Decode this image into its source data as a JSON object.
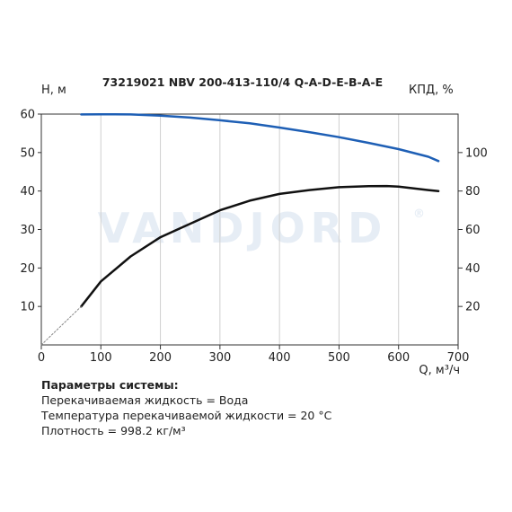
{
  "chart_data": {
    "type": "line",
    "title": "73219021 NBV 200-413-110/4 Q-A-D-E-B-A-E",
    "watermark": "VANDJORD",
    "watermark_mark": "®",
    "xlabel": "Q, м³/ч",
    "ylabel": "H, м",
    "y2label": "КПД, %",
    "xlim": [
      0,
      700
    ],
    "ylim": [
      0,
      60
    ],
    "y2lim": [
      0,
      120
    ],
    "xticks": [
      "0",
      "100",
      "200",
      "300",
      "400",
      "500",
      "600",
      "700"
    ],
    "yticks": [
      "10",
      "20",
      "30",
      "40",
      "50",
      "60"
    ],
    "y2ticks": [
      "20",
      "40",
      "60",
      "80",
      "100"
    ],
    "grid": "vertical",
    "series": [
      {
        "axis": "left",
        "color": "#1e5fb5",
        "x": [
          67,
          100,
          150,
          200,
          250,
          300,
          350,
          400,
          450,
          500,
          550,
          600,
          650,
          667
        ],
        "y": [
          59.9,
          59.95,
          59.9,
          59.6,
          59.1,
          58.4,
          57.6,
          56.5,
          55.3,
          54.0,
          52.5,
          50.9,
          48.9,
          47.8
        ]
      },
      {
        "axis": "right",
        "color": "#111111",
        "x": [
          67,
          100,
          150,
          200,
          250,
          300,
          350,
          400,
          450,
          500,
          550,
          580,
          600,
          650,
          667
        ],
        "y": [
          20,
          33,
          46,
          56,
          63,
          70,
          75,
          78.5,
          80.5,
          82,
          82.5,
          82.6,
          82.3,
          80.5,
          80
        ]
      },
      {
        "axis": "right",
        "color": "#888888",
        "dashed": true,
        "x": [
          0,
          67
        ],
        "y": [
          0,
          20
        ]
      }
    ]
  },
  "params": {
    "heading": "Параметры системы:",
    "lines": [
      "Перекачиваемая жидкость = Вода",
      "Температура перекачиваемой жидкости = 20 °C",
      "Плотность = 998.2 кг/м³"
    ]
  }
}
